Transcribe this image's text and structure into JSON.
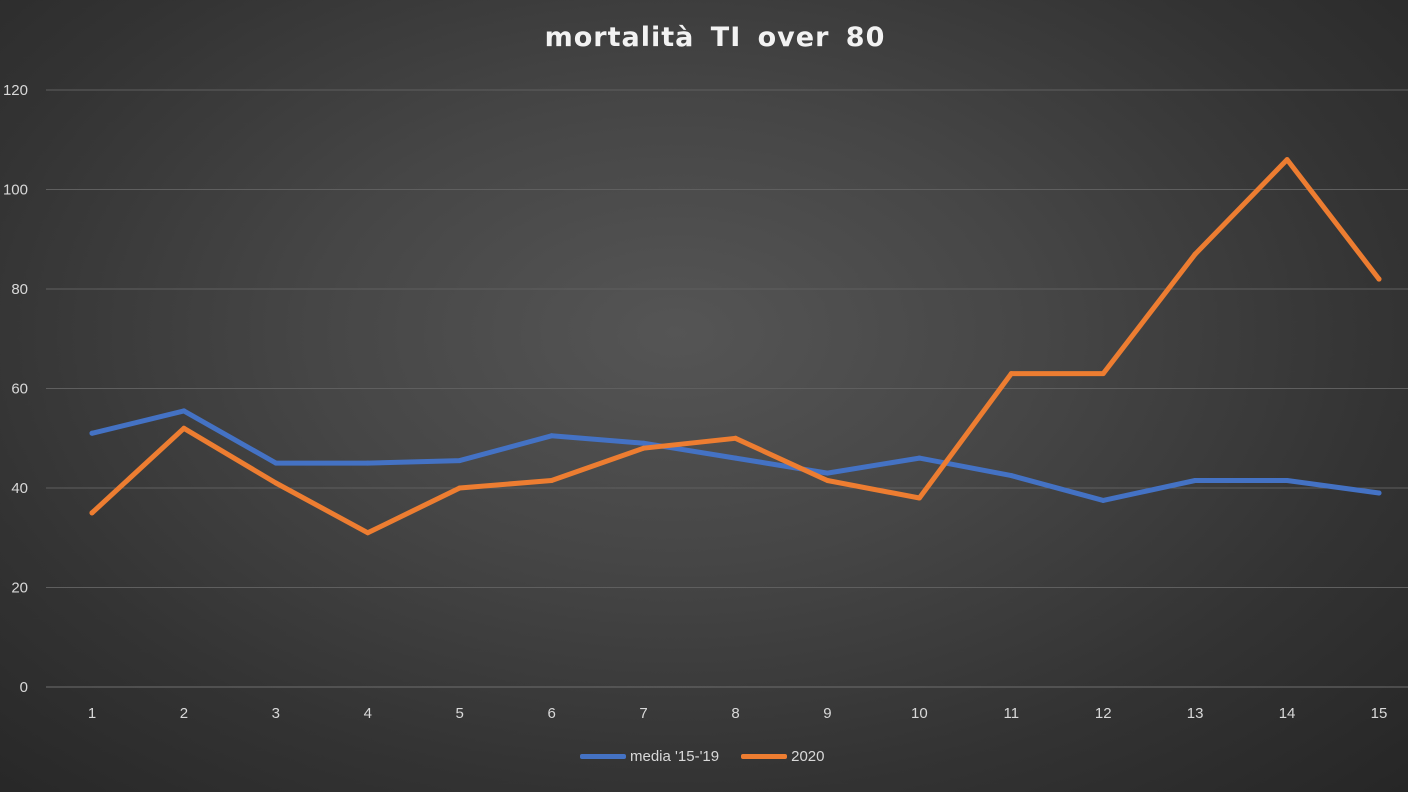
{
  "chart_data": {
    "type": "line",
    "title": "mortalità  TI over 80",
    "xlabel": "",
    "ylabel": "",
    "ylim": [
      0,
      120
    ],
    "yticks": [
      0,
      20,
      40,
      60,
      80,
      100,
      120
    ],
    "grid": true,
    "legend_position": "bottom",
    "categories": [
      "1",
      "2",
      "3",
      "4",
      "5",
      "6",
      "7",
      "8",
      "9",
      "10",
      "11",
      "12",
      "13",
      "14",
      "15"
    ],
    "series": [
      {
        "name": "media '15-'19",
        "color": "#4472c4",
        "values": [
          51,
          55.5,
          45,
          45,
          45.5,
          50.5,
          49,
          46,
          43,
          46,
          42.5,
          37.5,
          41.5,
          41.5,
          39
        ]
      },
      {
        "name": "2020",
        "color": "#ed7d31",
        "values": [
          35,
          52,
          41,
          31,
          40,
          41.5,
          48,
          50,
          41.5,
          38,
          63,
          63,
          87,
          106,
          82
        ]
      }
    ]
  }
}
